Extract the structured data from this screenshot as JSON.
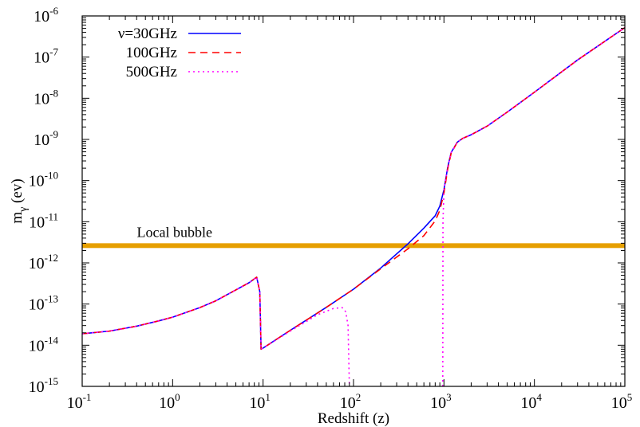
{
  "chart_data": {
    "type": "line",
    "x_scale": "log",
    "y_scale": "log",
    "xlim": [
      0.1,
      100000
    ],
    "ylim": [
      1e-15,
      1e-06
    ],
    "xlabel": "Redshift (z)",
    "ylabel_base": "m",
    "ylabel_sub": "γ",
    "ylabel_unit": " (ev)",
    "x_ticks": [
      {
        "value": 0.1,
        "base": "10",
        "exp": "-1"
      },
      {
        "value": 1,
        "base": "10",
        "exp": "0"
      },
      {
        "value": 10,
        "base": "10",
        "exp": "1"
      },
      {
        "value": 100,
        "base": "10",
        "exp": "2"
      },
      {
        "value": 1000,
        "base": "10",
        "exp": "3"
      },
      {
        "value": 10000,
        "base": "10",
        "exp": "4"
      },
      {
        "value": 100000,
        "base": "10",
        "exp": "5"
      }
    ],
    "y_ticks": [
      {
        "value": 1e-15,
        "base": "10",
        "exp": "-15"
      },
      {
        "value": 1e-14,
        "base": "10",
        "exp": "-14"
      },
      {
        "value": 1e-13,
        "base": "10",
        "exp": "-13"
      },
      {
        "value": 1e-12,
        "base": "10",
        "exp": "-12"
      },
      {
        "value": 1e-11,
        "base": "10",
        "exp": "-11"
      },
      {
        "value": 1e-10,
        "base": "10",
        "exp": "-10"
      },
      {
        "value": 1e-09,
        "base": "10",
        "exp": "-9"
      },
      {
        "value": 1e-08,
        "base": "10",
        "exp": "-8"
      },
      {
        "value": 1e-07,
        "base": "10",
        "exp": "-7"
      },
      {
        "value": 1e-06,
        "base": "10",
        "exp": "-6"
      }
    ],
    "grid": false,
    "legend_position": "top-left",
    "series": [
      {
        "name": "ν=30GHz",
        "color": "#0000ff",
        "dash": "solid",
        "points": [
          [
            0.1,
            1.9e-14
          ],
          [
            0.2,
            2.2e-14
          ],
          [
            0.4,
            2.9e-14
          ],
          [
            0.7,
            3.9e-14
          ],
          [
            1,
            4.8e-14
          ],
          [
            2,
            8.2e-14
          ],
          [
            3,
            1.2e-13
          ],
          [
            5,
            2.2e-13
          ],
          [
            7,
            3.3e-13
          ],
          [
            8.5,
            4.5e-13
          ],
          [
            9.2,
            2e-13
          ],
          [
            9.5,
            8e-15
          ],
          [
            10,
            8.5e-15
          ],
          [
            20,
            2.3e-14
          ],
          [
            50,
            8.3e-14
          ],
          [
            100,
            2.3e-13
          ],
          [
            200,
            7.5e-13
          ],
          [
            400,
            2.9e-12
          ],
          [
            600,
            7e-12
          ],
          [
            800,
            1.4e-11
          ],
          [
            900,
            2.4e-11
          ],
          [
            1000,
            6e-11
          ],
          [
            1100,
            2.1e-10
          ],
          [
            1200,
            4.8e-10
          ],
          [
            1400,
            8.5e-10
          ],
          [
            1600,
            1.05e-09
          ],
          [
            2000,
            1.3e-09
          ],
          [
            3000,
            2.1e-09
          ],
          [
            5000,
            4.6e-09
          ],
          [
            10000,
            1.4e-08
          ],
          [
            30000,
            8.5e-08
          ],
          [
            100000,
            5.2e-07
          ]
        ]
      },
      {
        "name": "100GHz",
        "color": "#ff0000",
        "dash": "dashed",
        "points": [
          [
            0.1,
            1.9e-14
          ],
          [
            0.2,
            2.2e-14
          ],
          [
            0.4,
            2.9e-14
          ],
          [
            0.7,
            3.9e-14
          ],
          [
            1,
            4.8e-14
          ],
          [
            2,
            8.2e-14
          ],
          [
            3,
            1.2e-13
          ],
          [
            5,
            2.2e-13
          ],
          [
            7,
            3.3e-13
          ],
          [
            8.5,
            4.5e-13
          ],
          [
            9.2,
            2e-13
          ],
          [
            9.5,
            8e-15
          ],
          [
            10,
            8.5e-15
          ],
          [
            20,
            2.3e-14
          ],
          [
            50,
            8.3e-14
          ],
          [
            100,
            2.3e-13
          ],
          [
            200,
            7.2e-13
          ],
          [
            400,
            2.2e-12
          ],
          [
            600,
            4.6e-12
          ],
          [
            800,
            1.05e-11
          ],
          [
            900,
            1.9e-11
          ],
          [
            1000,
            5e-11
          ],
          [
            1100,
            1.9e-10
          ],
          [
            1200,
            4.6e-10
          ],
          [
            1400,
            8.4e-10
          ],
          [
            1600,
            1.05e-09
          ],
          [
            2000,
            1.3e-09
          ],
          [
            3000,
            2.1e-09
          ],
          [
            5000,
            4.6e-09
          ],
          [
            10000,
            1.4e-08
          ],
          [
            30000,
            8.5e-08
          ],
          [
            100000,
            5.2e-07
          ]
        ]
      },
      {
        "name": "500GHz",
        "color": "#ff00ff",
        "dash": "dotted",
        "points": [
          [
            0.1,
            1.9e-14
          ],
          [
            0.2,
            2.2e-14
          ],
          [
            0.4,
            2.9e-14
          ],
          [
            0.7,
            3.9e-14
          ],
          [
            1,
            4.8e-14
          ],
          [
            2,
            8.2e-14
          ],
          [
            3,
            1.2e-13
          ],
          [
            5,
            2.2e-13
          ],
          [
            7,
            3.3e-13
          ],
          [
            8.5,
            4.5e-13
          ],
          [
            9.2,
            2e-13
          ],
          [
            9.5,
            8e-15
          ],
          [
            10,
            8.5e-15
          ],
          [
            20,
            2.2e-14
          ],
          [
            40,
            5.5e-14
          ],
          [
            60,
            7.8e-14
          ],
          [
            75,
            8.2e-14
          ],
          [
            82,
            6.5e-14
          ],
          [
            87,
            3e-14
          ],
          [
            90,
            1e-15
          ]
        ]
      },
      {
        "name": "500GHz",
        "color": "#ff00ff",
        "dash": "dotted",
        "points": [
          [
            970,
            1e-15
          ],
          [
            975,
            1e-11
          ],
          [
            1000,
            6e-11
          ],
          [
            1100,
            2.1e-10
          ],
          [
            1200,
            4.8e-10
          ],
          [
            1400,
            8.5e-10
          ],
          [
            1600,
            1.05e-09
          ],
          [
            2000,
            1.3e-09
          ],
          [
            3000,
            2.1e-09
          ],
          [
            5000,
            4.6e-09
          ],
          [
            10000,
            1.4e-08
          ],
          [
            30000,
            8.5e-08
          ],
          [
            100000,
            5.2e-07
          ]
        ]
      }
    ],
    "reference_band": {
      "label": "Local bubble",
      "color": "#e69f00",
      "y_low": 2.3e-12,
      "y_high": 3e-12
    }
  }
}
